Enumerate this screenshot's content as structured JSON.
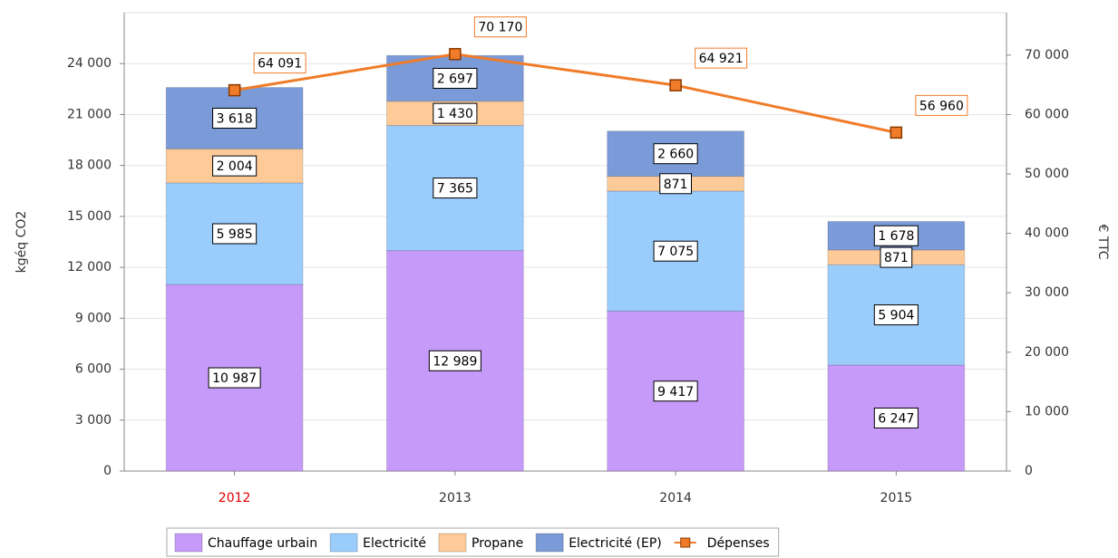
{
  "chart_data": {
    "type": "stacked-bar-line",
    "categories": [
      "2012",
      "2013",
      "2014",
      "2015"
    ],
    "category_colors": [
      "#e00000",
      "#333333",
      "#333333",
      "#333333"
    ],
    "ylabel": "kgéq CO2",
    "y2label": "€ TTC",
    "ylim": [
      0,
      27000
    ],
    "yticks": [
      0,
      {
        "value": 3000,
        "label": "3 000"
      },
      {
        "value": 6000,
        "label": "6 000"
      },
      {
        "value": 9000,
        "label": "9 000"
      },
      {
        "value": 12000,
        "label": "12 000"
      },
      {
        "value": 15000,
        "label": "15 000"
      },
      {
        "value": 18000,
        "label": "18 000"
      },
      {
        "value": 21000,
        "label": "21 000"
      },
      {
        "value": 24000,
        "label": "24 000"
      }
    ],
    "y2lim": [
      0,
      77140
    ],
    "y2ticks": [
      0,
      {
        "value": 10000,
        "label": "10 000"
      },
      {
        "value": 20000,
        "label": "20 000"
      },
      {
        "value": 30000,
        "label": "30 000"
      },
      {
        "value": 40000,
        "label": "40 000"
      },
      {
        "value": 50000,
        "label": "50 000"
      },
      {
        "value": 60000,
        "label": "60 000"
      },
      {
        "value": 70000,
        "label": "70 000"
      }
    ],
    "grid": true,
    "legend": "bottom",
    "series": [
      {
        "name": "Chauffage urbain",
        "kind": "bar",
        "color": "#c69af9",
        "values": [
          10987,
          12989,
          9417,
          6247
        ],
        "value_labels": [
          "10 987",
          "12 989",
          "9 417",
          "6 247"
        ]
      },
      {
        "name": "Electricité",
        "kind": "bar",
        "color": "#9accfc",
        "values": [
          5985,
          7365,
          7075,
          5904
        ],
        "value_labels": [
          "5 985",
          "7 365",
          "7 075",
          "5 904"
        ]
      },
      {
        "name": "Propane",
        "kind": "bar",
        "color": "#fdca98",
        "values": [
          2004,
          1430,
          871,
          871
        ],
        "value_labels": [
          "2 004",
          "1 430",
          "871",
          "871"
        ]
      },
      {
        "name": "Electricité (EP)",
        "kind": "bar",
        "color": "#7a9ad8",
        "values": [
          3618,
          2697,
          2660,
          1678
        ],
        "value_labels": [
          "3 618",
          "2 697",
          "2 660",
          "1 678"
        ]
      },
      {
        "name": "Dépenses",
        "kind": "line",
        "axis": "y2",
        "color": "#f07c2a",
        "values": [
          64091,
          70170,
          64921,
          56960
        ],
        "value_labels": [
          "64 091",
          "70 170",
          "64 921",
          "56 960"
        ]
      }
    ]
  }
}
